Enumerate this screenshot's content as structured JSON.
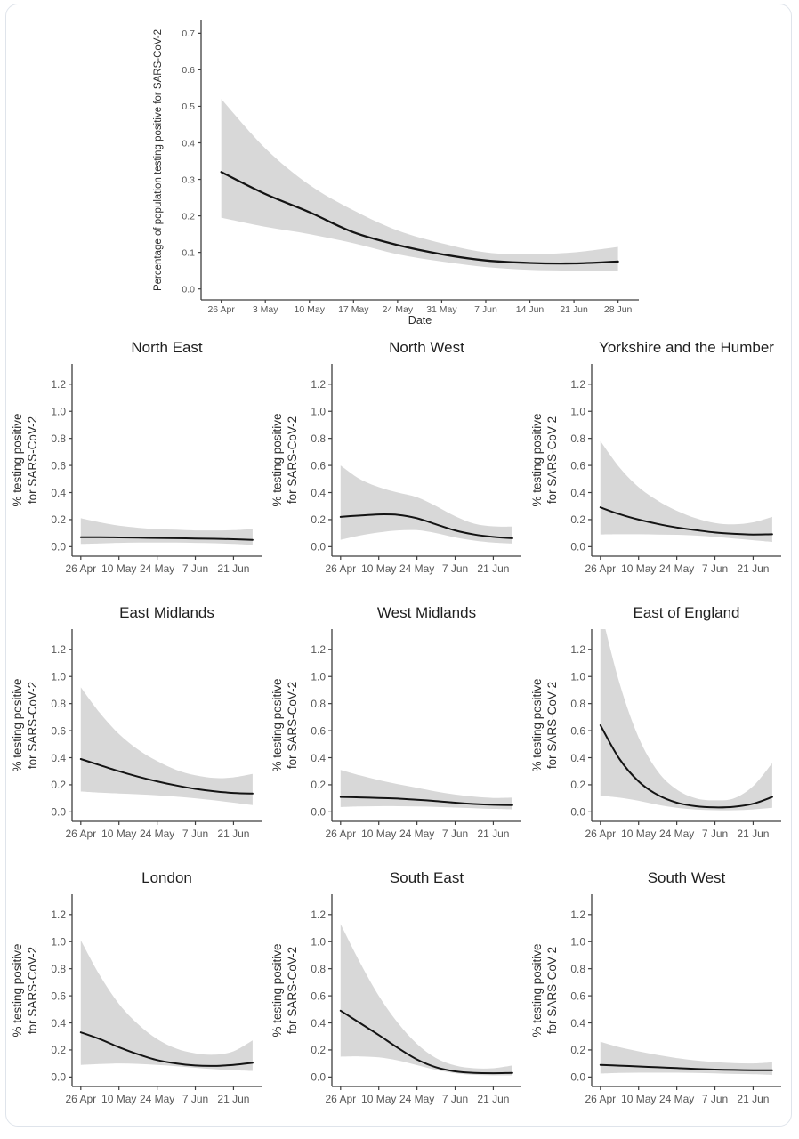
{
  "style": {
    "band_color": "#d8d8d8",
    "line_color": "#141414",
    "axis_color": "#3f3f3f",
    "tick_label_color": "#575757",
    "axis_title_color": "#2c2c2c",
    "title_color": "#1f1f1f",
    "card_border_color": "#dfe4eb",
    "background": "#ffffff"
  },
  "chart_data": [
    {
      "type": "line",
      "name": "england-overall",
      "title": "",
      "ylabel": "Percentage of population testing positive for SARS-CoV-2",
      "xlabel": "Date",
      "legend": "none",
      "grid": "off",
      "x_tick_labels": [
        "26 Apr",
        "3 May",
        "10 May",
        "17 May",
        "24 May",
        "31 May",
        "7 Jun",
        "14 Jun",
        "21 Jun",
        "28 Jun"
      ],
      "x_tick_days": [
        0,
        7,
        14,
        21,
        28,
        35,
        42,
        49,
        56,
        63
      ],
      "y_tick_labels": [
        "0.0",
        "0.1",
        "0.2",
        "0.3",
        "0.4",
        "0.5",
        "0.6",
        "0.7"
      ],
      "y_tick_values": [
        0,
        0.1,
        0.2,
        0.3,
        0.4,
        0.5,
        0.6,
        0.7
      ],
      "x_domain_days": [
        -3.2,
        66.3
      ],
      "y_domain": [
        -0.03,
        0.735
      ],
      "x_days": [
        0,
        7,
        14,
        21,
        28,
        35,
        42,
        49,
        56,
        63
      ],
      "mean": [
        0.32,
        0.26,
        0.21,
        0.155,
        0.12,
        0.095,
        0.078,
        0.071,
        0.07,
        0.075
      ],
      "ci_upper": [
        0.52,
        0.385,
        0.285,
        0.215,
        0.16,
        0.125,
        0.1,
        0.095,
        0.1,
        0.115
      ],
      "ci_lower": [
        0.195,
        0.17,
        0.15,
        0.125,
        0.095,
        0.075,
        0.06,
        0.052,
        0.05,
        0.048
      ]
    },
    {
      "type": "line",
      "name": "north-east",
      "title": "North East",
      "ylabel_lines": [
        "% testing positive",
        "for SARS-CoV-2"
      ],
      "x_tick_labels": [
        "26 Apr",
        "10 May",
        "24 May",
        "7 Jun",
        "21 Jun"
      ],
      "x_tick_days": [
        0,
        14,
        28,
        42,
        56
      ],
      "y_tick_labels": [
        "0.0",
        "0.2",
        "0.4",
        "0.6",
        "0.8",
        "1.0",
        "1.2"
      ],
      "y_tick_values": [
        0,
        0.2,
        0.4,
        0.6,
        0.8,
        1.0,
        1.2
      ],
      "x_domain_days": [
        -3.2,
        66.3
      ],
      "y_domain": [
        -0.07,
        1.35
      ],
      "x_days": [
        0,
        7,
        14,
        21,
        28,
        35,
        42,
        49,
        56,
        63
      ],
      "mean": [
        0.07,
        0.07,
        0.068,
        0.066,
        0.064,
        0.062,
        0.06,
        0.058,
        0.055,
        0.05
      ],
      "ci_upper": [
        0.21,
        0.18,
        0.155,
        0.14,
        0.13,
        0.125,
        0.12,
        0.12,
        0.122,
        0.13
      ],
      "ci_lower": [
        0.02,
        0.024,
        0.028,
        0.03,
        0.03,
        0.03,
        0.028,
        0.025,
        0.02,
        0.012
      ]
    },
    {
      "type": "line",
      "name": "north-west",
      "title": "North West",
      "ylabel_lines": [
        "% testing positive",
        "for SARS-CoV-2"
      ],
      "x_tick_labels": [
        "26 Apr",
        "10 May",
        "24 May",
        "7 Jun",
        "21 Jun"
      ],
      "x_tick_days": [
        0,
        14,
        28,
        42,
        56
      ],
      "y_tick_labels": [
        "0.0",
        "0.2",
        "0.4",
        "0.6",
        "0.8",
        "1.0",
        "1.2"
      ],
      "y_tick_values": [
        0,
        0.2,
        0.4,
        0.6,
        0.8,
        1.0,
        1.2
      ],
      "x_domain_days": [
        -3.2,
        66.3
      ],
      "y_domain": [
        -0.07,
        1.35
      ],
      "x_days": [
        0,
        7,
        14,
        21,
        28,
        35,
        42,
        49,
        56,
        63
      ],
      "mean": [
        0.22,
        0.23,
        0.238,
        0.235,
        0.21,
        0.165,
        0.12,
        0.09,
        0.072,
        0.062
      ],
      "ci_upper": [
        0.6,
        0.5,
        0.44,
        0.4,
        0.365,
        0.3,
        0.225,
        0.17,
        0.15,
        0.148
      ],
      "ci_lower": [
        0.05,
        0.082,
        0.105,
        0.12,
        0.122,
        0.1,
        0.068,
        0.045,
        0.03,
        0.022
      ]
    },
    {
      "type": "line",
      "name": "yorkshire-and-the-humber",
      "title": "Yorkshire and the Humber",
      "ylabel_lines": [
        "% testing positive",
        "for SARS-CoV-2"
      ],
      "x_tick_labels": [
        "26 Apr",
        "10 May",
        "24 May",
        "7 Jun",
        "21 Jun"
      ],
      "x_tick_days": [
        0,
        14,
        28,
        42,
        56
      ],
      "y_tick_labels": [
        "0.0",
        "0.2",
        "0.4",
        "0.6",
        "0.8",
        "1.0",
        "1.2"
      ],
      "y_tick_values": [
        0,
        0.2,
        0.4,
        0.6,
        0.8,
        1.0,
        1.2
      ],
      "x_domain_days": [
        -3.2,
        66.3
      ],
      "y_domain": [
        -0.07,
        1.35
      ],
      "x_days": [
        0,
        7,
        14,
        21,
        28,
        35,
        42,
        49,
        56,
        63
      ],
      "mean": [
        0.29,
        0.24,
        0.2,
        0.168,
        0.142,
        0.122,
        0.105,
        0.095,
        0.09,
        0.092
      ],
      "ci_upper": [
        0.78,
        0.585,
        0.44,
        0.34,
        0.265,
        0.21,
        0.175,
        0.165,
        0.18,
        0.22
      ],
      "ci_lower": [
        0.09,
        0.092,
        0.092,
        0.09,
        0.088,
        0.082,
        0.072,
        0.06,
        0.048,
        0.035
      ]
    },
    {
      "type": "line",
      "name": "east-midlands",
      "title": "East Midlands",
      "ylabel_lines": [
        "% testing positive",
        "for SARS-CoV-2"
      ],
      "x_tick_labels": [
        "26 Apr",
        "10 May",
        "24 May",
        "7 Jun",
        "21 Jun"
      ],
      "x_tick_days": [
        0,
        14,
        28,
        42,
        56
      ],
      "y_tick_labels": [
        "0.0",
        "0.2",
        "0.4",
        "0.6",
        "0.8",
        "1.0",
        "1.2"
      ],
      "y_tick_values": [
        0,
        0.2,
        0.4,
        0.6,
        0.8,
        1.0,
        1.2
      ],
      "x_domain_days": [
        -3.2,
        66.3
      ],
      "y_domain": [
        -0.07,
        1.35
      ],
      "x_days": [
        0,
        7,
        14,
        21,
        28,
        35,
        42,
        49,
        56,
        63
      ],
      "mean": [
        0.39,
        0.345,
        0.3,
        0.26,
        0.225,
        0.195,
        0.17,
        0.152,
        0.14,
        0.135
      ],
      "ci_upper": [
        0.92,
        0.73,
        0.575,
        0.46,
        0.375,
        0.31,
        0.27,
        0.25,
        0.255,
        0.28
      ],
      "ci_lower": [
        0.15,
        0.142,
        0.136,
        0.13,
        0.122,
        0.112,
        0.1,
        0.085,
        0.068,
        0.05
      ]
    },
    {
      "type": "line",
      "name": "west-midlands",
      "title": "West Midlands",
      "ylabel_lines": [
        "% testing positive",
        "for SARS-CoV-2"
      ],
      "x_tick_labels": [
        "26 Apr",
        "10 May",
        "24 May",
        "7 Jun",
        "21 Jun"
      ],
      "x_tick_days": [
        0,
        14,
        28,
        42,
        56
      ],
      "y_tick_labels": [
        "0.0",
        "0.2",
        "0.4",
        "0.6",
        "0.8",
        "1.0",
        "1.2"
      ],
      "y_tick_values": [
        0,
        0.2,
        0.4,
        0.6,
        0.8,
        1.0,
        1.2
      ],
      "x_domain_days": [
        -3.2,
        66.3
      ],
      "y_domain": [
        -0.07,
        1.35
      ],
      "x_days": [
        0,
        7,
        14,
        21,
        28,
        35,
        42,
        49,
        56,
        63
      ],
      "mean": [
        0.11,
        0.107,
        0.103,
        0.098,
        0.09,
        0.08,
        0.068,
        0.058,
        0.052,
        0.05
      ],
      "ci_upper": [
        0.31,
        0.27,
        0.235,
        0.205,
        0.178,
        0.15,
        0.128,
        0.112,
        0.103,
        0.105
      ],
      "ci_lower": [
        0.035,
        0.04,
        0.042,
        0.042,
        0.04,
        0.037,
        0.032,
        0.027,
        0.022,
        0.018
      ]
    },
    {
      "type": "line",
      "name": "east-of-england",
      "title": "East of England",
      "ylabel_lines": [
        "% testing positive",
        "for SARS-CoV-2"
      ],
      "x_tick_labels": [
        "26 Apr",
        "10 May",
        "24 May",
        "7 Jun",
        "21 Jun"
      ],
      "x_tick_days": [
        0,
        14,
        28,
        42,
        56
      ],
      "y_tick_labels": [
        "0.0",
        "0.2",
        "0.4",
        "0.6",
        "0.8",
        "1.0",
        "1.2"
      ],
      "y_tick_values": [
        0,
        0.2,
        0.4,
        0.6,
        0.8,
        1.0,
        1.2
      ],
      "x_domain_days": [
        -3.2,
        66.3
      ],
      "y_domain": [
        -0.07,
        1.35
      ],
      "x_days": [
        0,
        7,
        14,
        21,
        28,
        35,
        42,
        49,
        56,
        63
      ],
      "mean": [
        0.64,
        0.39,
        0.225,
        0.125,
        0.068,
        0.042,
        0.033,
        0.038,
        0.06,
        0.11
      ],
      "ci_upper": [
        1.5,
        0.95,
        0.55,
        0.3,
        0.165,
        0.1,
        0.085,
        0.1,
        0.19,
        0.36
      ],
      "ci_lower": [
        0.12,
        0.105,
        0.082,
        0.052,
        0.03,
        0.017,
        0.012,
        0.012,
        0.018,
        0.03
      ]
    },
    {
      "type": "line",
      "name": "london",
      "title": "London",
      "ylabel_lines": [
        "% testing positive",
        "for SARS-CoV-2"
      ],
      "x_tick_labels": [
        "26 Apr",
        "10 May",
        "24 May",
        "7 Jun",
        "21 Jun"
      ],
      "x_tick_days": [
        0,
        14,
        28,
        42,
        56
      ],
      "y_tick_labels": [
        "0.0",
        "0.2",
        "0.4",
        "0.6",
        "0.8",
        "1.0",
        "1.2"
      ],
      "y_tick_values": [
        0,
        0.2,
        0.4,
        0.6,
        0.8,
        1.0,
        1.2
      ],
      "x_domain_days": [
        -3.2,
        66.3
      ],
      "y_domain": [
        -0.07,
        1.35
      ],
      "x_days": [
        0,
        7,
        14,
        21,
        28,
        35,
        42,
        49,
        56,
        63
      ],
      "mean": [
        0.33,
        0.28,
        0.22,
        0.168,
        0.125,
        0.1,
        0.085,
        0.082,
        0.09,
        0.105
      ],
      "ci_upper": [
        1.01,
        0.75,
        0.54,
        0.39,
        0.28,
        0.21,
        0.175,
        0.165,
        0.19,
        0.27
      ],
      "ci_lower": [
        0.09,
        0.096,
        0.1,
        0.097,
        0.09,
        0.08,
        0.068,
        0.058,
        0.05,
        0.045
      ]
    },
    {
      "type": "line",
      "name": "south-east",
      "title": "South East",
      "ylabel_lines": [
        "% testing positive",
        "for SARS-CoV-2"
      ],
      "x_tick_labels": [
        "26 Apr",
        "10 May",
        "24 May",
        "7 Jun",
        "21 Jun"
      ],
      "x_tick_days": [
        0,
        14,
        28,
        42,
        56
      ],
      "y_tick_labels": [
        "0.0",
        "0.2",
        "0.4",
        "0.6",
        "0.8",
        "1.0",
        "1.2"
      ],
      "y_tick_values": [
        0,
        0.2,
        0.4,
        0.6,
        0.8,
        1.0,
        1.2
      ],
      "x_domain_days": [
        -3.2,
        66.3
      ],
      "y_domain": [
        -0.07,
        1.35
      ],
      "x_days": [
        0,
        7,
        14,
        21,
        28,
        35,
        42,
        49,
        56,
        63
      ],
      "mean": [
        0.49,
        0.4,
        0.31,
        0.215,
        0.13,
        0.072,
        0.042,
        0.03,
        0.028,
        0.03
      ],
      "ci_upper": [
        1.13,
        0.85,
        0.6,
        0.4,
        0.245,
        0.14,
        0.085,
        0.065,
        0.065,
        0.085
      ],
      "ci_lower": [
        0.15,
        0.152,
        0.145,
        0.122,
        0.088,
        0.052,
        0.028,
        0.016,
        0.012,
        0.012
      ]
    },
    {
      "type": "line",
      "name": "south-west",
      "title": "South West",
      "ylabel_lines": [
        "% testing positive",
        "for SARS-CoV-2"
      ],
      "x_tick_labels": [
        "26 Apr",
        "10 May",
        "24 May",
        "7 Jun",
        "21 Jun"
      ],
      "x_tick_days": [
        0,
        14,
        28,
        42,
        56
      ],
      "y_tick_labels": [
        "0.0",
        "0.2",
        "0.4",
        "0.6",
        "0.8",
        "1.0",
        "1.2"
      ],
      "y_tick_values": [
        0,
        0.2,
        0.4,
        0.6,
        0.8,
        1.0,
        1.2
      ],
      "x_domain_days": [
        -3.2,
        66.3
      ],
      "y_domain": [
        -0.07,
        1.35
      ],
      "x_days": [
        0,
        7,
        14,
        21,
        28,
        35,
        42,
        49,
        56,
        63
      ],
      "mean": [
        0.09,
        0.084,
        0.078,
        0.072,
        0.066,
        0.06,
        0.055,
        0.052,
        0.05,
        0.05
      ],
      "ci_upper": [
        0.26,
        0.22,
        0.19,
        0.163,
        0.14,
        0.122,
        0.11,
        0.103,
        0.1,
        0.108
      ],
      "ci_lower": [
        0.025,
        0.03,
        0.032,
        0.032,
        0.032,
        0.03,
        0.027,
        0.023,
        0.02,
        0.015
      ]
    }
  ]
}
